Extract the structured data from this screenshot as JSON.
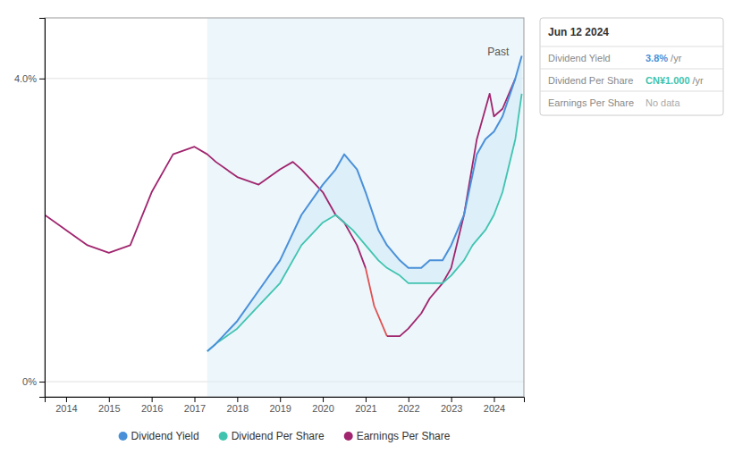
{
  "chart_data": {
    "type": "line",
    "xlim": [
      2013.5,
      2024.7
    ],
    "ylim": [
      -0.002,
      0.048
    ],
    "xticks": [
      2014,
      2015,
      2016,
      2017,
      2018,
      2019,
      2020,
      2021,
      2022,
      2023,
      2024
    ],
    "yticks": [
      {
        "value": 0.0,
        "label": "0%"
      },
      {
        "value": 0.04,
        "label": "4.0%"
      }
    ],
    "grid": true,
    "legend": "bottom",
    "series": [
      {
        "name": "Dividend Yield",
        "color": "#4a90d9",
        "x": [
          2017.3,
          2017.5,
          2018.0,
          2018.5,
          2019.0,
          2019.5,
          2020.0,
          2020.3,
          2020.5,
          2020.8,
          2021.0,
          2021.3,
          2021.5,
          2021.8,
          2022.0,
          2022.3,
          2022.5,
          2022.8,
          2023.0,
          2023.3,
          2023.6,
          2023.8,
          2024.0,
          2024.2,
          2024.5,
          2024.65
        ],
        "values": [
          0.004,
          0.005,
          0.008,
          0.012,
          0.016,
          0.022,
          0.026,
          0.028,
          0.03,
          0.028,
          0.025,
          0.02,
          0.018,
          0.016,
          0.015,
          0.015,
          0.016,
          0.016,
          0.018,
          0.022,
          0.03,
          0.032,
          0.033,
          0.035,
          0.04,
          0.043
        ]
      },
      {
        "name": "Dividend Per Share",
        "color": "#40c4b0",
        "x": [
          2017.3,
          2017.5,
          2018.0,
          2018.5,
          2019.0,
          2019.5,
          2020.0,
          2020.3,
          2020.7,
          2021.0,
          2021.3,
          2021.5,
          2021.8,
          2022.0,
          2022.3,
          2022.5,
          2022.8,
          2023.0,
          2023.3,
          2023.5,
          2023.8,
          2024.0,
          2024.2,
          2024.5,
          2024.65
        ],
        "values": [
          0.004,
          0.005,
          0.007,
          0.01,
          0.013,
          0.018,
          0.021,
          0.022,
          0.02,
          0.018,
          0.016,
          0.015,
          0.014,
          0.013,
          0.013,
          0.013,
          0.013,
          0.014,
          0.016,
          0.018,
          0.02,
          0.022,
          0.025,
          0.032,
          0.038
        ]
      },
      {
        "name": "Earnings Per Share",
        "color": "#a0256e",
        "x": [
          2013.5,
          2014.0,
          2014.5,
          2015.0,
          2015.5,
          2016.0,
          2016.5,
          2017.0,
          2017.3,
          2017.5,
          2018.0,
          2018.5,
          2019.0,
          2019.3,
          2019.5,
          2020.0,
          2020.3,
          2020.5,
          2020.8,
          2021.0,
          2021.2,
          2021.3,
          2021.5,
          2021.8,
          2022.0,
          2022.3,
          2022.5,
          2022.8,
          2023.0,
          2023.3,
          2023.6,
          2023.9,
          2024.0,
          2024.2,
          2024.5
        ],
        "values": [
          0.022,
          0.02,
          0.018,
          0.017,
          0.018,
          0.025,
          0.03,
          0.031,
          0.03,
          0.029,
          0.027,
          0.026,
          0.028,
          0.029,
          0.028,
          0.025,
          0.022,
          0.021,
          0.018,
          0.015,
          null,
          null,
          0.006,
          0.006,
          0.007,
          0.009,
          0.011,
          0.013,
          0.015,
          0.022,
          0.032,
          0.038,
          0.035,
          0.036,
          0.04
        ]
      },
      {
        "color": "#e05050",
        "x": [
          2021.0,
          2021.2,
          2021.5
        ],
        "values": [
          0.015,
          0.01,
          0.006
        ]
      }
    ],
    "annotations": [
      {
        "text": "Past",
        "x": 2023.85,
        "y": 0.0435,
        "span": [
          2017.3,
          2024.7
        ],
        "color": "#daeef8"
      },
      {
        "text": "Jun 12 2024",
        "rows": [
          {
            "label": "Dividend Yield",
            "value": "3.8%",
            "unit": "/yr",
            "color": "#4a90d9"
          },
          {
            "label": "Dividend Per Share",
            "value": "CN¥1.000",
            "unit": "/yr",
            "color": "#40c4b0"
          },
          {
            "label": "Earnings Per Share",
            "value": "No data",
            "color": "#aaaaaa"
          }
        ]
      }
    ]
  }
}
